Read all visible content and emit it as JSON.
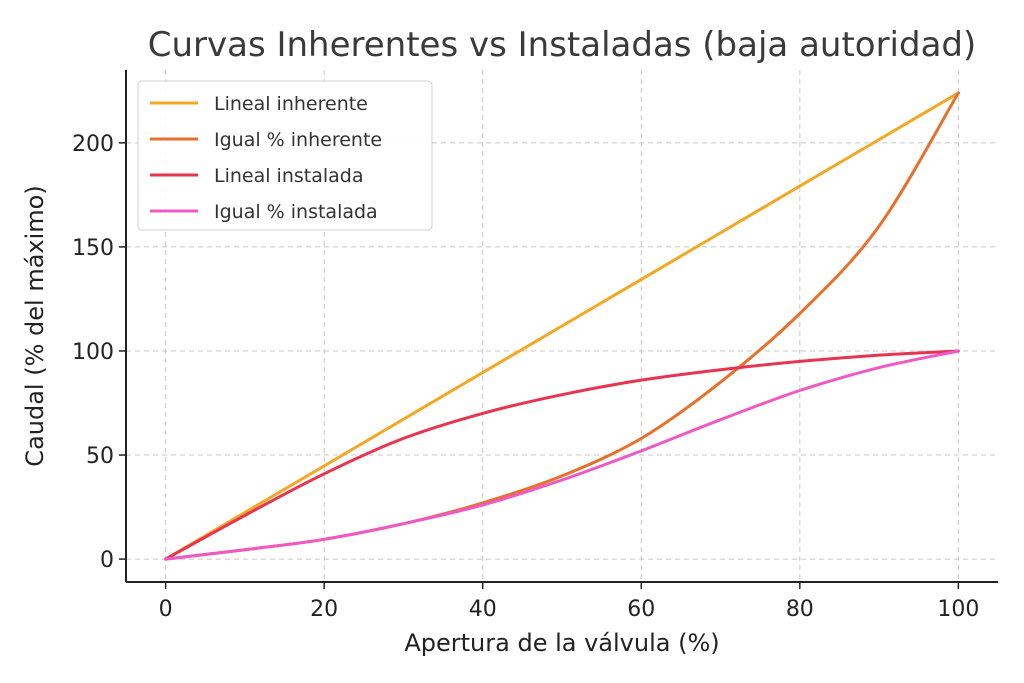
{
  "chart_data": {
    "type": "line",
    "title": "Curvas Inherentes vs Instaladas (baja autoridad)",
    "xlabel": "Apertura de la válvula (%)",
    "ylabel": "Caudal (% del máximo)",
    "xlim": [
      -5,
      105
    ],
    "ylim": [
      -11,
      235
    ],
    "xticks": [
      0,
      20,
      40,
      60,
      80,
      100
    ],
    "yticks": [
      0,
      50,
      100,
      150,
      200
    ],
    "grid": true,
    "legend_position": "top-left",
    "x": [
      0,
      10,
      20,
      30,
      40,
      50,
      60,
      70,
      80,
      90,
      100
    ],
    "series": [
      {
        "name": "Lineal inherente",
        "color": "#F5A623",
        "values": [
          0,
          22.4,
          44.8,
          67.2,
          89.6,
          112,
          134.4,
          156.8,
          179.2,
          201.6,
          224
        ]
      },
      {
        "name": "Igual % inherente",
        "color": "#E8702A",
        "values": [
          0,
          4.5,
          9.5,
          17,
          27,
          40,
          58,
          85,
          118,
          160,
          224
        ]
      },
      {
        "name": "Lineal instalada",
        "color": "#E8344E",
        "values": [
          0,
          21,
          41,
          58,
          70,
          79,
          86,
          91,
          95,
          98,
          100
        ]
      },
      {
        "name": "Igual % instalada",
        "color": "#EE59C6",
        "values": [
          0,
          4.5,
          9.5,
          17,
          26,
          38,
          52,
          67,
          81,
          92,
          100
        ]
      }
    ]
  }
}
